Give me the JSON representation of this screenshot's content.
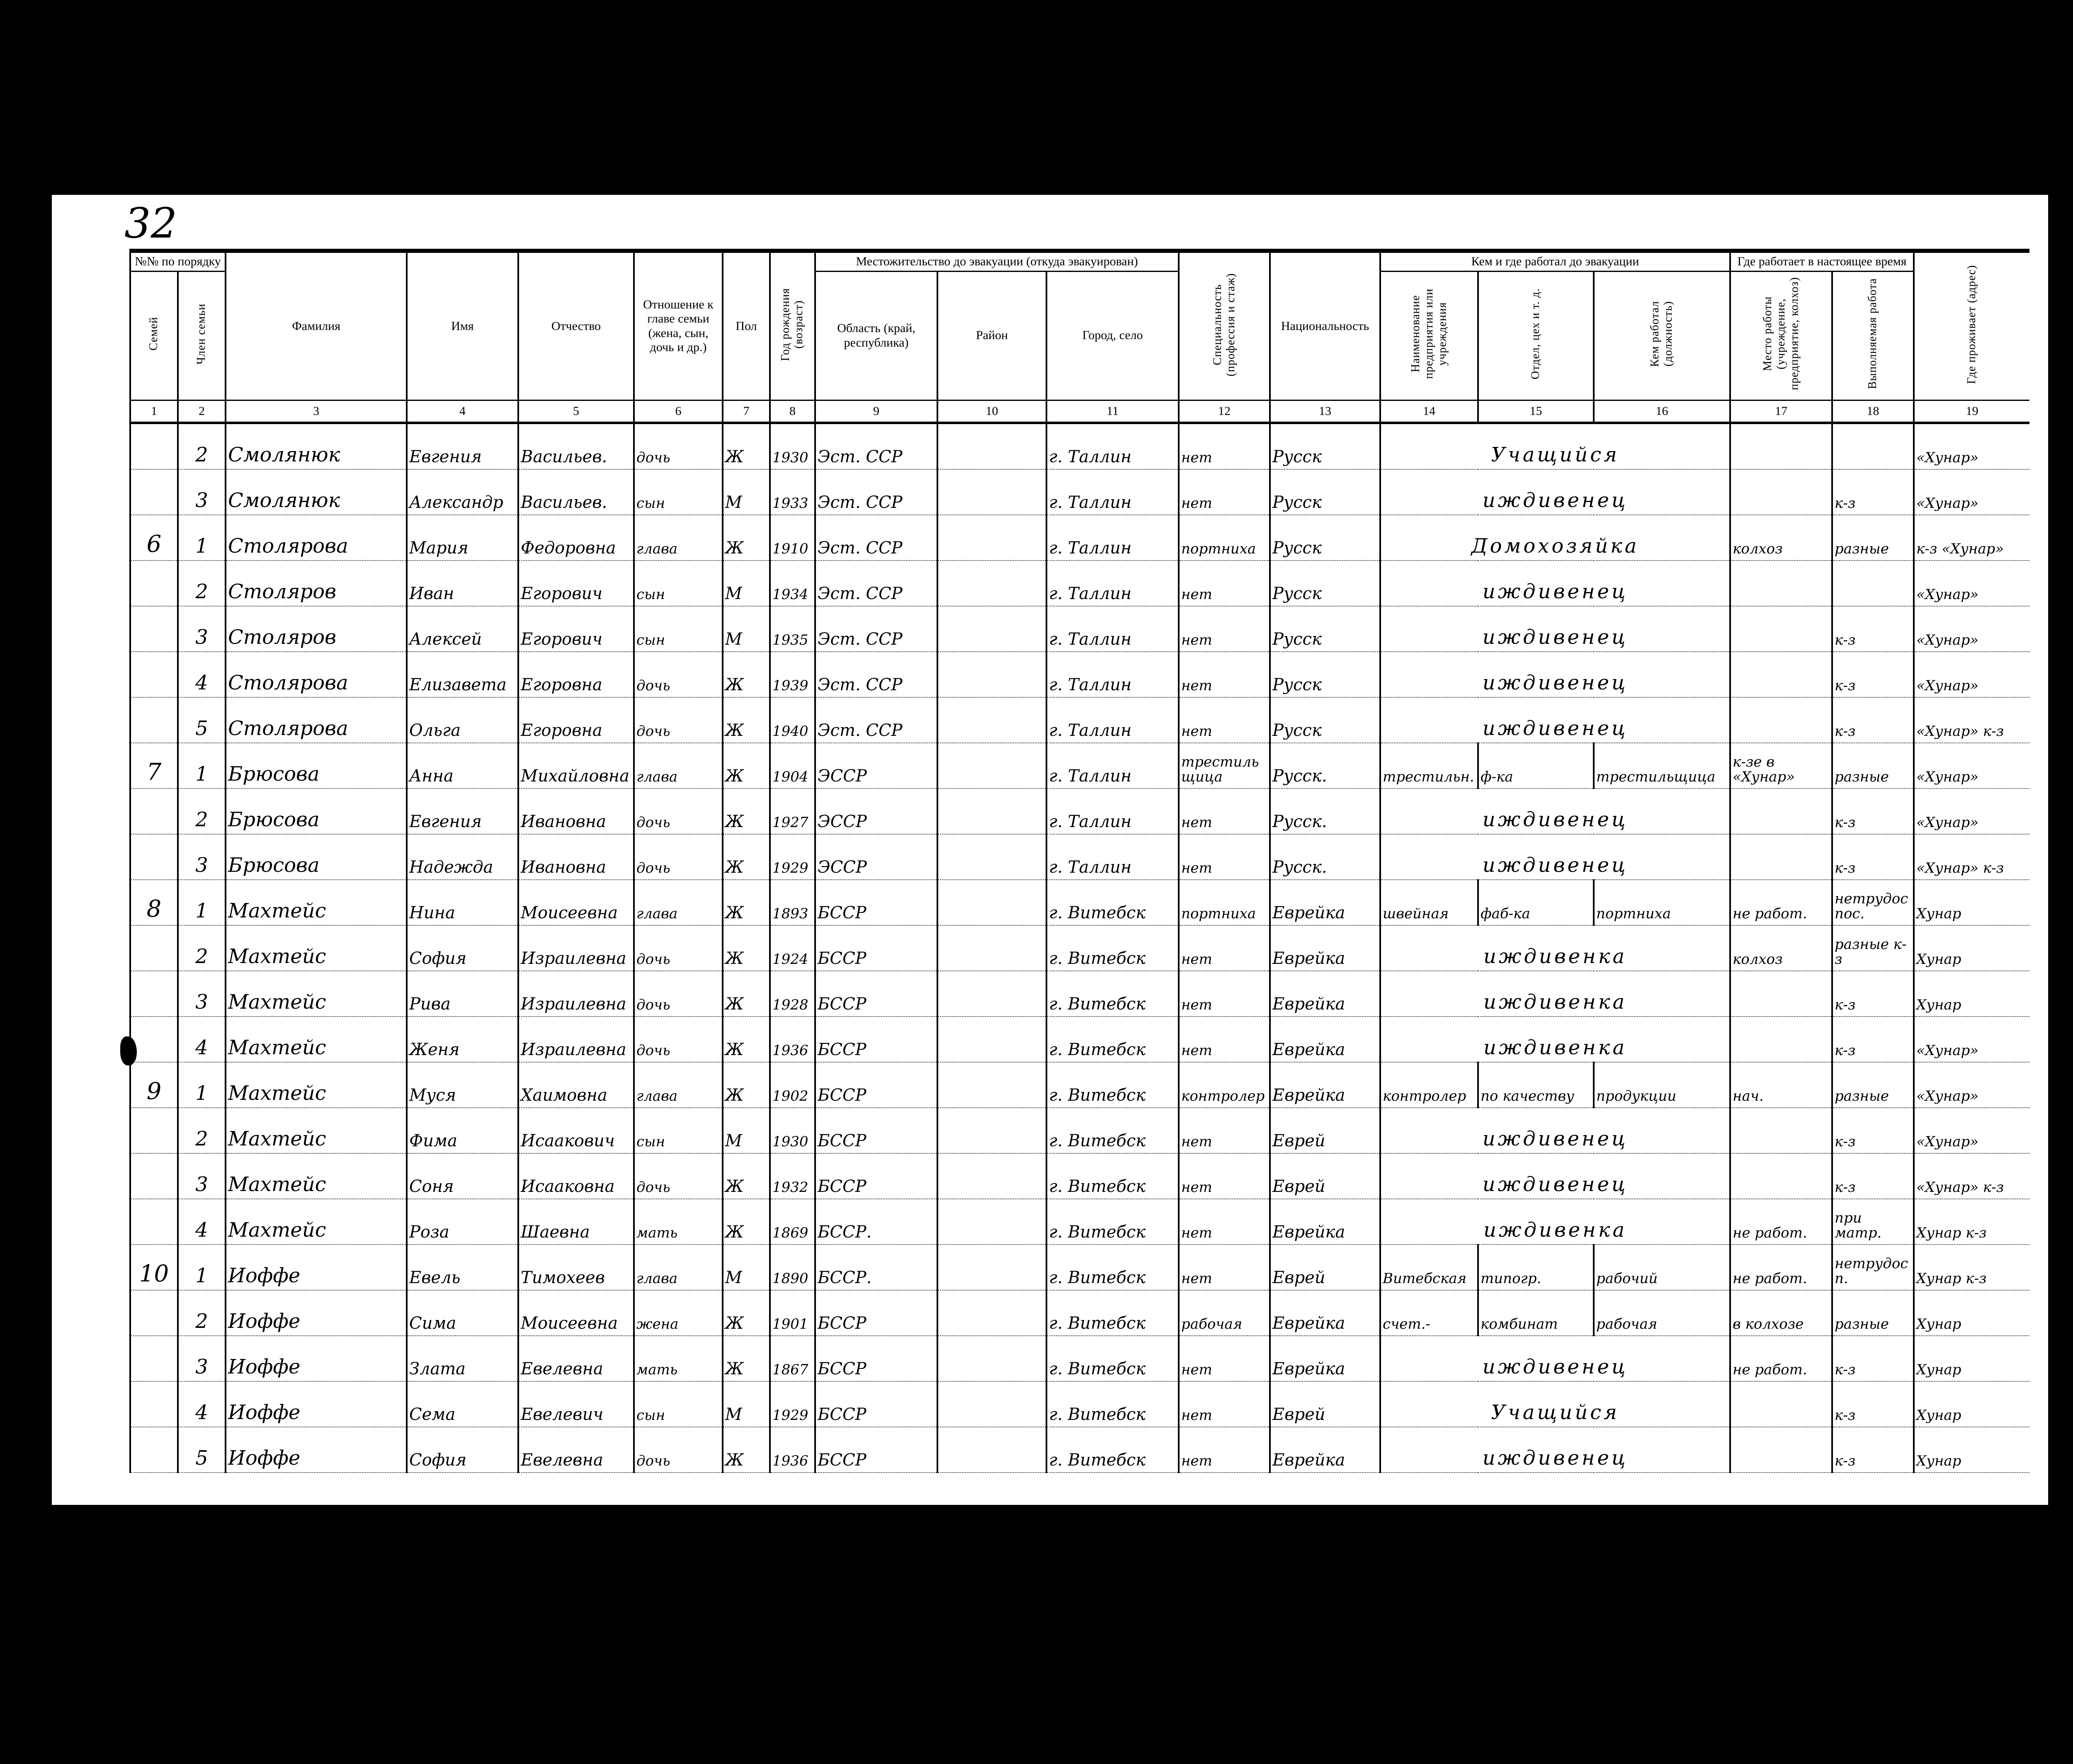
{
  "page_number": "32",
  "headers": {
    "group_order_no": "№№ по порядку",
    "group_residence": "Местожительство до эвакуации (откуда эвакуирован)",
    "group_work_before": "Кем и где работал до эвакуации",
    "group_work_now": "Где работает в настоящее время",
    "c1": "Семей",
    "c2": "Член семьи",
    "c3": "Фамилия",
    "c4": "Имя",
    "c5": "Отчество",
    "c6": "Отношение к главе семьи (жена, сын, дочь и др.)",
    "c7": "Пол",
    "c8": "Год рождения (возраст)",
    "c9": "Область (край, республика)",
    "c10": "Район",
    "c11": "Город, село",
    "c12": "Специальность (профессия и стаж)",
    "c13": "Национальность",
    "c14": "Наименование предприятия или учреждения",
    "c15": "Отдел, цех и т. д.",
    "c16": "Кем работал (должность)",
    "c17": "Место работы (учреждение, предприятие, колхоз)",
    "c18": "Выполняемая работа",
    "c19": "Где проживает (адрес)"
  },
  "column_numbers": [
    "1",
    "2",
    "3",
    "4",
    "5",
    "6",
    "7",
    "8",
    "9",
    "10",
    "11",
    "12",
    "13",
    "14",
    "15",
    "16",
    "17",
    "18",
    "19"
  ],
  "rows": [
    {
      "c1": "",
      "c2": "2",
      "c3": "Смолянюк",
      "c4": "Евгения",
      "c5": "Васильев.",
      "c6": "дочь",
      "c7": "Ж",
      "c8": "1930",
      "c9": "Эст. ССР",
      "c10": "",
      "c11": "г. Таллин",
      "c12": "нет",
      "c13": "Русск",
      "span": "Учащийся",
      "c17": "",
      "c18": "",
      "c19": "«Хунар»"
    },
    {
      "c1": "",
      "c2": "3",
      "c3": "Смолянюк",
      "c4": "Александр",
      "c5": "Васильев.",
      "c6": "сын",
      "c7": "М",
      "c8": "1933",
      "c9": "Эст. ССР",
      "c10": "",
      "c11": "г. Таллин",
      "c12": "нет",
      "c13": "Русск",
      "span": "иждивенец",
      "c17": "",
      "c18": "к-з",
      "c19": "«Хунар»"
    },
    {
      "c1": "6",
      "c2": "1",
      "c3": "Столярова",
      "c4": "Мария",
      "c5": "Федоровна",
      "c6": "глава",
      "c7": "Ж",
      "c8": "1910",
      "c9": "Эст. ССР",
      "c10": "",
      "c11": "г. Таллин",
      "c12": "портниха",
      "c13": "Русск",
      "span": "Домохозяйка",
      "c17": "колхоз",
      "c18": "разные",
      "c19": "к-з «Хунар»"
    },
    {
      "c1": "",
      "c2": "2",
      "c3": "Столяров",
      "c4": "Иван",
      "c5": "Егорович",
      "c6": "сын",
      "c7": "М",
      "c8": "1934",
      "c9": "Эст. ССР",
      "c10": "",
      "c11": "г. Таллин",
      "c12": "нет",
      "c13": "Русск",
      "span": "иждивенец",
      "c17": "",
      "c18": "",
      "c19": "«Хунар»"
    },
    {
      "c1": "",
      "c2": "3",
      "c3": "Столяров",
      "c4": "Алексей",
      "c5": "Егорович",
      "c6": "сын",
      "c7": "М",
      "c8": "1935",
      "c9": "Эст. ССР",
      "c10": "",
      "c11": "г. Таллин",
      "c12": "нет",
      "c13": "Русск",
      "span": "иждивенец",
      "c17": "",
      "c18": "к-з",
      "c19": "«Хунар»"
    },
    {
      "c1": "",
      "c2": "4",
      "c3": "Столярова",
      "c4": "Елизавета",
      "c5": "Егоровна",
      "c6": "дочь",
      "c7": "Ж",
      "c8": "1939",
      "c9": "Эст. ССР",
      "c10": "",
      "c11": "г. Таллин",
      "c12": "нет",
      "c13": "Русск",
      "span": "иждивенец",
      "c17": "",
      "c18": "к-з",
      "c19": "«Хунар»"
    },
    {
      "c1": "",
      "c2": "5",
      "c3": "Столярова",
      "c4": "Ольга",
      "c5": "Егоровна",
      "c6": "дочь",
      "c7": "Ж",
      "c8": "1940",
      "c9": "Эст. ССР",
      "c10": "",
      "c11": "г. Таллин",
      "c12": "нет",
      "c13": "Русск",
      "span": "иждивенец",
      "c17": "",
      "c18": "к-з",
      "c19": "«Хунар» к-з"
    },
    {
      "c1": "7",
      "c2": "1",
      "c3": "Брюсова",
      "c4": "Анна",
      "c5": "Михайловна",
      "c6": "глава",
      "c7": "Ж",
      "c8": "1904",
      "c9": "ЭССР",
      "c10": "",
      "c11": "г. Таллин",
      "c12": "трестильщица",
      "c13": "Русск.",
      "c14": "трестильн.",
      "c15": "ф-ка",
      "c16": "трестильщица",
      "c17": "к-зе в «Хунар»",
      "c18": "разные",
      "c19": "«Хунар»"
    },
    {
      "c1": "",
      "c2": "2",
      "c3": "Брюсова",
      "c4": "Евгения",
      "c5": "Ивановна",
      "c6": "дочь",
      "c7": "Ж",
      "c8": "1927",
      "c9": "ЭССР",
      "c10": "",
      "c11": "г. Таллин",
      "c12": "нет",
      "c13": "Русск.",
      "span": "иждивенец",
      "c17": "",
      "c18": "к-з",
      "c19": "«Хунар»"
    },
    {
      "c1": "",
      "c2": "3",
      "c3": "Брюсова",
      "c4": "Надежда",
      "c5": "Ивановна",
      "c6": "дочь",
      "c7": "Ж",
      "c8": "1929",
      "c9": "ЭССР",
      "c10": "",
      "c11": "г. Таллин",
      "c12": "нет",
      "c13": "Русск.",
      "span": "иждивенец",
      "c17": "",
      "c18": "к-з",
      "c19": "«Хунар» к-з"
    },
    {
      "c1": "8",
      "c2": "1",
      "c3": "Махтейс",
      "c4": "Нина",
      "c5": "Моисеевна",
      "c6": "глава",
      "c7": "Ж",
      "c8": "1893",
      "c9": "БССР",
      "c10": "",
      "c11": "г. Витебск",
      "c12": "портниха",
      "c13": "Еврейка",
      "c14": "швейная",
      "c15": "фаб-ка",
      "c16": "портниха",
      "c17": "не работ.",
      "c18": "нетрудоспос.",
      "c19": "Хунар"
    },
    {
      "c1": "",
      "c2": "2",
      "c3": "Махтейс",
      "c4": "София",
      "c5": "Израилевна",
      "c6": "дочь",
      "c7": "Ж",
      "c8": "1924",
      "c9": "БССР",
      "c10": "",
      "c11": "г. Витебск",
      "c12": "нет",
      "c13": "Еврейка",
      "span": "иждивенка",
      "c17": "колхоз",
      "c18": "разные к-з",
      "c19": "Хунар"
    },
    {
      "c1": "",
      "c2": "3",
      "c3": "Махтейс",
      "c4": "Рива",
      "c5": "Израилевна",
      "c6": "дочь",
      "c7": "Ж",
      "c8": "1928",
      "c9": "БССР",
      "c10": "",
      "c11": "г. Витебск",
      "c12": "нет",
      "c13": "Еврейка",
      "span": "иждивенка",
      "c17": "",
      "c18": "к-з",
      "c19": "Хунар"
    },
    {
      "c1": "",
      "c2": "4",
      "c3": "Махтейс",
      "c4": "Женя",
      "c5": "Израилевна",
      "c6": "дочь",
      "c7": "Ж",
      "c8": "1936",
      "c9": "БССР",
      "c10": "",
      "c11": "г. Витебск",
      "c12": "нет",
      "c13": "Еврейка",
      "span": "иждивенка",
      "c17": "",
      "c18": "к-з",
      "c19": "«Хунар»"
    },
    {
      "c1": "9",
      "c2": "1",
      "c3": "Махтейс",
      "c4": "Муся",
      "c5": "Хаимовна",
      "c6": "глава",
      "c7": "Ж",
      "c8": "1902",
      "c9": "БССР",
      "c10": "",
      "c11": "г. Витебск",
      "c12": "контролер",
      "c13": "Еврейка",
      "c14": "контролер",
      "c15": "по качеству",
      "c16": "продукции",
      "c17": "нач.",
      "c18": "разные",
      "c19": "«Хунар»"
    },
    {
      "c1": "",
      "c2": "2",
      "c3": "Махтейс",
      "c4": "Фима",
      "c5": "Исаакович",
      "c6": "сын",
      "c7": "М",
      "c8": "1930",
      "c9": "БССР",
      "c10": "",
      "c11": "г. Витебск",
      "c12": "нет",
      "c13": "Еврей",
      "span": "иждивенец",
      "c17": "",
      "c18": "к-з",
      "c19": "«Хунар»"
    },
    {
      "c1": "",
      "c2": "3",
      "c3": "Махтейс",
      "c4": "Соня",
      "c5": "Исааковна",
      "c6": "дочь",
      "c7": "Ж",
      "c8": "1932",
      "c9": "БССР",
      "c10": "",
      "c11": "г. Витебск",
      "c12": "нет",
      "c13": "Еврей",
      "span": "иждивенец",
      "c17": "",
      "c18": "к-з",
      "c19": "«Хунар» к-з"
    },
    {
      "c1": "",
      "c2": "4",
      "c3": "Махтейс",
      "c4": "Роза",
      "c5": "Шаевна",
      "c6": "мать",
      "c7": "Ж",
      "c8": "1869",
      "c9": "БССР.",
      "c10": "",
      "c11": "г. Витебск",
      "c12": "нет",
      "c13": "Еврейка",
      "span": "иждивенка",
      "c17": "не работ.",
      "c18": "при матр.",
      "c19": "Хунар к-з"
    },
    {
      "c1": "10",
      "c2": "1",
      "c3": "Иоффе",
      "c4": "Евель",
      "c5": "Тимохеев",
      "c6": "глава",
      "c7": "М",
      "c8": "1890",
      "c9": "БССР.",
      "c10": "",
      "c11": "г. Витебск",
      "c12": "нет",
      "c13": "Еврей",
      "c14": "Витебская",
      "c15": "типогр.",
      "c16": "рабочий",
      "c17": "не работ.",
      "c18": "нетрудосп.",
      "c19": "Хунар к-з"
    },
    {
      "c1": "",
      "c2": "2",
      "c3": "Иоффе",
      "c4": "Сима",
      "c5": "Моисеевна",
      "c6": "жена",
      "c7": "Ж",
      "c8": "1901",
      "c9": "БССР",
      "c10": "",
      "c11": "г. Витебск",
      "c12": "рабочая",
      "c13": "Еврейка",
      "c14": "счет.-",
      "c15": "комбинат",
      "c16": "рабочая",
      "c17": "в колхозе",
      "c18": "разные",
      "c19": "Хунар"
    },
    {
      "c1": "",
      "c2": "3",
      "c3": "Иоффе",
      "c4": "Злата",
      "c5": "Евелевна",
      "c6": "мать",
      "c7": "Ж",
      "c8": "1867",
      "c9": "БССР",
      "c10": "",
      "c11": "г. Витебск",
      "c12": "нет",
      "c13": "Еврейка",
      "span": "иждивенец",
      "c17": "не работ.",
      "c18": "к-з",
      "c19": "Хунар"
    },
    {
      "c1": "",
      "c2": "4",
      "c3": "Иоффе",
      "c4": "Сема",
      "c5": "Евелевич",
      "c6": "сын",
      "c7": "М",
      "c8": "1929",
      "c9": "БССР",
      "c10": "",
      "c11": "г. Витебск",
      "c12": "нет",
      "c13": "Еврей",
      "span": "Учащийся",
      "c17": "",
      "c18": "к-з",
      "c19": "Хунар"
    },
    {
      "c1": "",
      "c2": "5",
      "c3": "Иоффе",
      "c4": "София",
      "c5": "Евелевна",
      "c6": "дочь",
      "c7": "Ж",
      "c8": "1936",
      "c9": "БССР",
      "c10": "",
      "c11": "г. Витебск",
      "c12": "нет",
      "c13": "Еврейка",
      "span": "иждивенец",
      "c17": "",
      "c18": "к-з",
      "c19": "Хунар"
    }
  ]
}
